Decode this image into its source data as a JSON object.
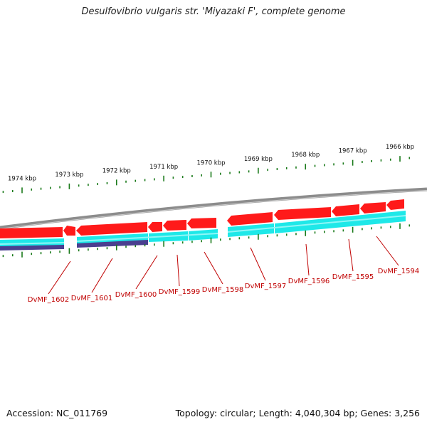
{
  "title": "Desulfovibrio vulgaris str. 'Miyazaki F', complete genome",
  "footer": {
    "accession": "Accession: NC_011769",
    "summary": "Topology: circular; Length: 4,040,304 bp; Genes: 3,256"
  },
  "colors": {
    "backbone": "#8c8c8c",
    "gene": "#ff1a1a",
    "cds": "#1ee8e8",
    "misc_feature": "#4a3f8f",
    "tick": "#1a7a1a",
    "label": "#c00000"
  },
  "scale": {
    "unit": "kbp",
    "ticks": [
      {
        "kbp": 1974,
        "label": "1974 kbp"
      },
      {
        "kbp": 1973,
        "label": "1973 kbp"
      },
      {
        "kbp": 1972,
        "label": "1972 kbp"
      },
      {
        "kbp": 1971,
        "label": "1971 kbp"
      },
      {
        "kbp": 1970,
        "label": "1970 kbp"
      },
      {
        "kbp": 1969,
        "label": "1969 kbp"
      },
      {
        "kbp": 1968,
        "label": "1968 kbp"
      },
      {
        "kbp": 1967,
        "label": "1967 kbp"
      },
      {
        "kbp": 1966,
        "label": "1966 kbp"
      }
    ]
  },
  "genes": [
    {
      "label": "DvMF_1602"
    },
    {
      "label": "DvMF_1601"
    },
    {
      "label": "DvMF_1600"
    },
    {
      "label": "DvMF_1599"
    },
    {
      "label": "DvMF_1598"
    },
    {
      "label": "DvMF_1597"
    },
    {
      "label": "DvMF_1596"
    },
    {
      "label": "DvMF_1595"
    },
    {
      "label": "DvMF_1594"
    }
  ]
}
